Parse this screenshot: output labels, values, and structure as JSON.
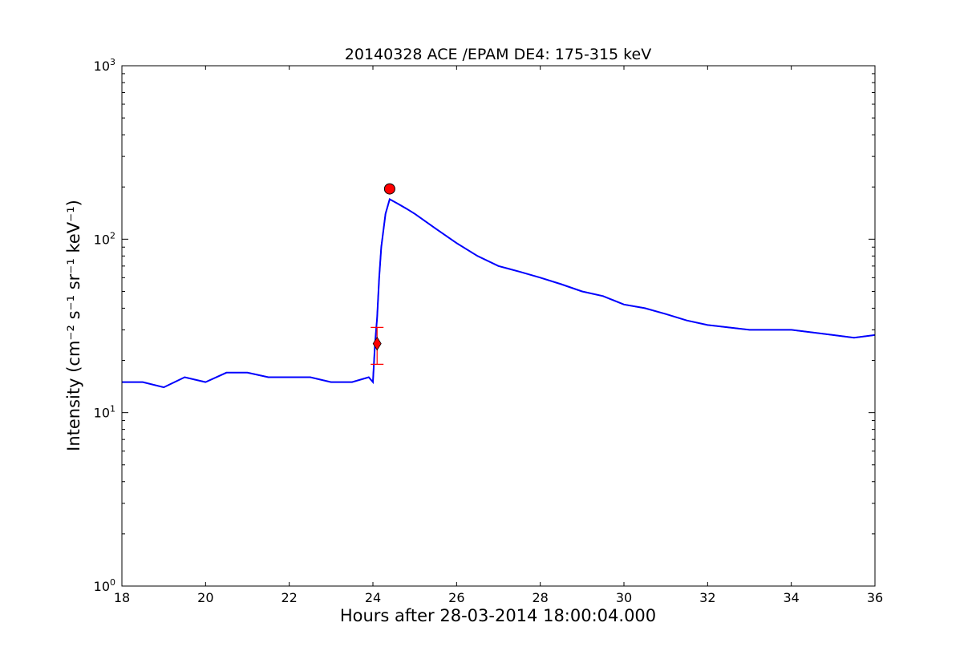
{
  "chart_data": {
    "type": "line",
    "title": "20140328 ACE /EPAM DE4: 175-315 keV",
    "xlabel": "Hours after 28-03-2014 18:00:04.000",
    "ylabel": "Intensity (cm⁻² s⁻¹ sr⁻¹ keV⁻¹)",
    "xlim": [
      18,
      36
    ],
    "ylim": [
      1,
      1000
    ],
    "yscale": "log",
    "x_ticks": [
      18,
      20,
      22,
      24,
      26,
      28,
      30,
      32,
      34,
      36
    ],
    "y_ticks": [
      {
        "value": 1,
        "base": "10",
        "exp": "0"
      },
      {
        "value": 10,
        "base": "10",
        "exp": "1"
      },
      {
        "value": 100,
        "base": "10",
        "exp": "2"
      },
      {
        "value": 1000,
        "base": "10",
        "exp": "3"
      }
    ],
    "grid": false,
    "series": [
      {
        "color": "#000000",
        "x": [
          18.0,
          18.5,
          19.0,
          19.5,
          20.0,
          20.5,
          21.0,
          21.5,
          22.0,
          22.5,
          23.0,
          23.5,
          23.9,
          24.0,
          24.05,
          24.1,
          24.15,
          24.2,
          24.3,
          24.4,
          24.6,
          24.8,
          25.0,
          25.5,
          26.0,
          26.5,
          27.0,
          27.5,
          28.0,
          28.5,
          29.0,
          29.5,
          30.0,
          30.5,
          31.0,
          31.5,
          32.0,
          32.5,
          33.0,
          33.5,
          34.0,
          34.5,
          35.0,
          35.5,
          36.0
        ],
        "y": [
          15,
          15,
          14,
          16,
          15,
          17,
          17,
          16,
          16,
          16,
          15,
          15,
          16,
          15,
          25,
          35,
          60,
          90,
          140,
          170,
          160,
          150,
          140,
          115,
          95,
          80,
          70,
          65,
          60,
          55,
          50,
          47,
          42,
          40,
          37,
          34,
          32,
          31,
          30,
          30,
          30,
          29,
          28,
          27,
          28
        ]
      },
      {
        "color": "#0000ff",
        "x": [
          18.0,
          18.5,
          19.0,
          19.5,
          20.0,
          20.5,
          21.0,
          21.5,
          22.0,
          22.5,
          23.0,
          23.5,
          23.9,
          24.0,
          24.05,
          24.1,
          24.15,
          24.2,
          24.3,
          24.4,
          24.6,
          24.8,
          25.0,
          25.5,
          26.0,
          26.5,
          27.0,
          27.5,
          28.0,
          28.5,
          29.0,
          29.5,
          30.0,
          30.5,
          31.0,
          31.5,
          32.0,
          32.5,
          33.0,
          33.5,
          34.0,
          34.5,
          35.0,
          35.5,
          36.0
        ],
        "y": [
          15,
          15,
          14,
          16,
          15,
          17,
          17,
          16,
          16,
          16,
          15,
          15,
          16,
          15,
          25,
          35,
          60,
          90,
          140,
          170,
          160,
          150,
          140,
          115,
          95,
          80,
          70,
          65,
          60,
          55,
          50,
          47,
          42,
          40,
          37,
          34,
          32,
          31,
          30,
          30,
          30,
          29,
          28,
          27,
          28
        ]
      }
    ],
    "markers": [
      {
        "shape": "circle",
        "x": 24.4,
        "y": 195,
        "color": "#ff0000"
      },
      {
        "shape": "diamond",
        "x": 24.1,
        "y": 25,
        "color": "#ff0000",
        "error_low": 19,
        "error_high": 31
      }
    ]
  }
}
